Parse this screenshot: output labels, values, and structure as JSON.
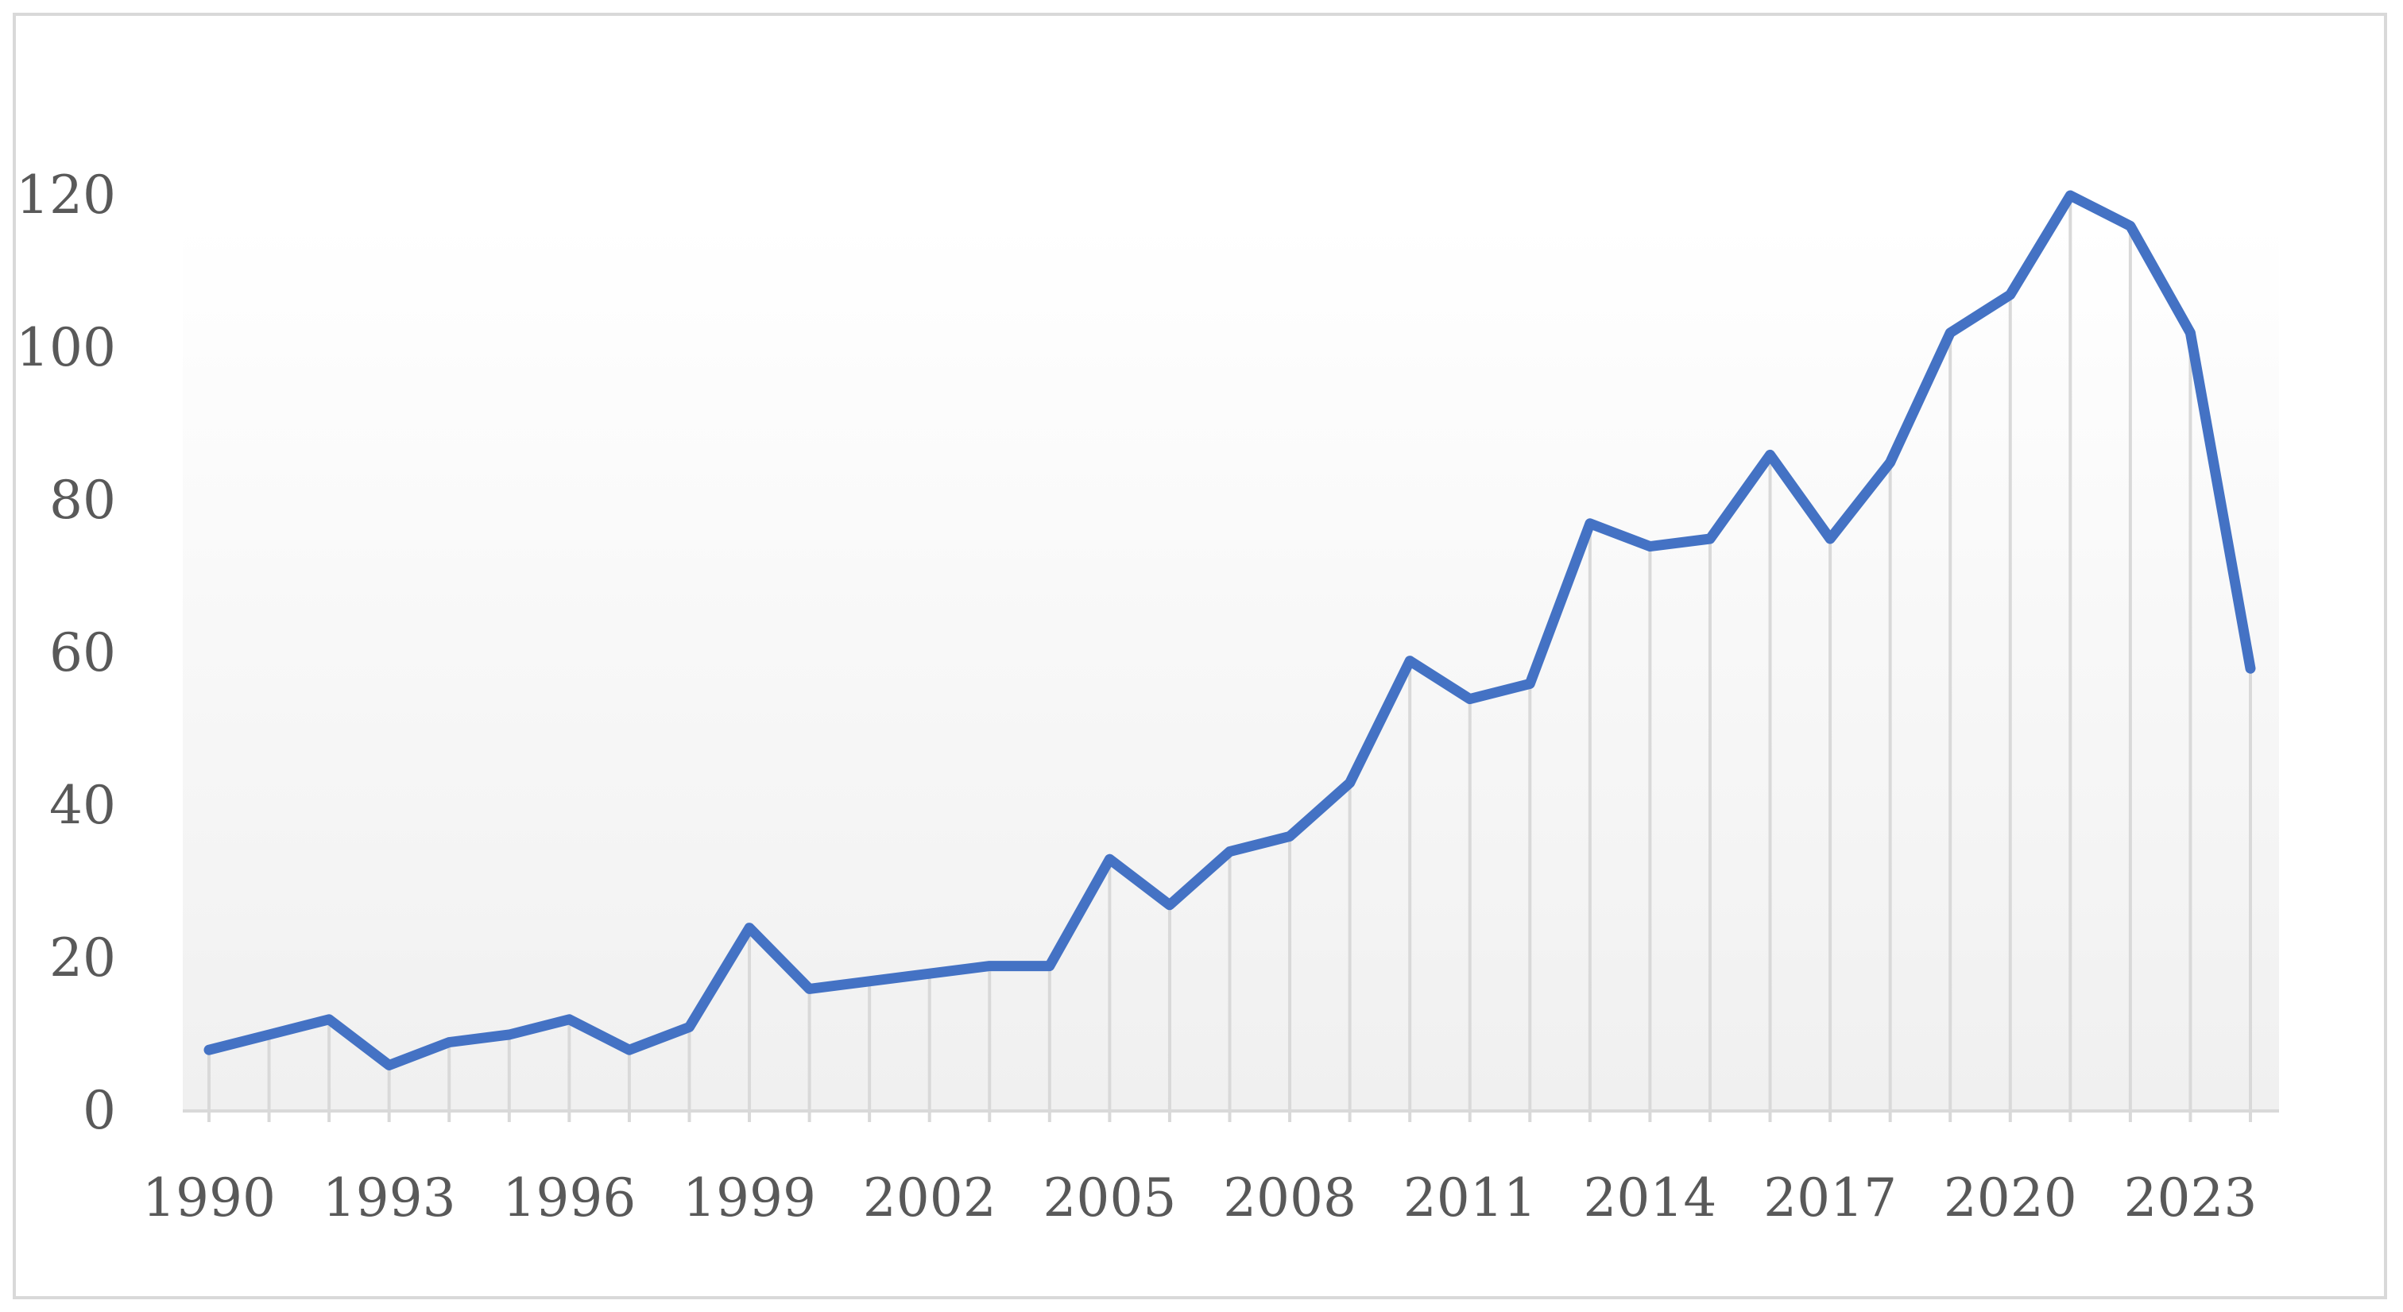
{
  "chart_data": {
    "type": "line",
    "title": "",
    "xlabel": "",
    "ylabel": "",
    "x": [
      1990,
      1991,
      1992,
      1993,
      1994,
      1995,
      1996,
      1997,
      1998,
      1999,
      2000,
      2001,
      2002,
      2003,
      2004,
      2005,
      2006,
      2007,
      2008,
      2009,
      2010,
      2011,
      2012,
      2013,
      2014,
      2015,
      2016,
      2017,
      2018,
      2019,
      2020,
      2021,
      2022,
      2023,
      2024
    ],
    "series": [
      {
        "values": [
          8,
          10,
          12,
          6,
          9,
          10,
          12,
          8,
          11,
          24,
          16,
          17,
          18,
          19,
          19,
          33,
          27,
          34,
          36,
          43,
          59,
          54,
          56,
          77,
          74,
          75,
          86,
          75,
          85,
          102,
          107,
          120,
          116,
          102,
          58
        ],
        "color": "#4472c4"
      }
    ],
    "xticks": [
      "1990",
      "1993",
      "1996",
      "1999",
      "2002",
      "2005",
      "2008",
      "2011",
      "2014",
      "2017",
      "2020",
      "2023"
    ],
    "yticks": [
      "0",
      "20",
      "40",
      "60",
      "80",
      "100",
      "120"
    ],
    "ylim": [
      0,
      130
    ],
    "xlim": [
      1990,
      2024
    ],
    "drop_lines": true,
    "plot_area_gradient": [
      "#ffffff",
      "#f0f0f0"
    ],
    "grid": false,
    "legend": "none"
  }
}
